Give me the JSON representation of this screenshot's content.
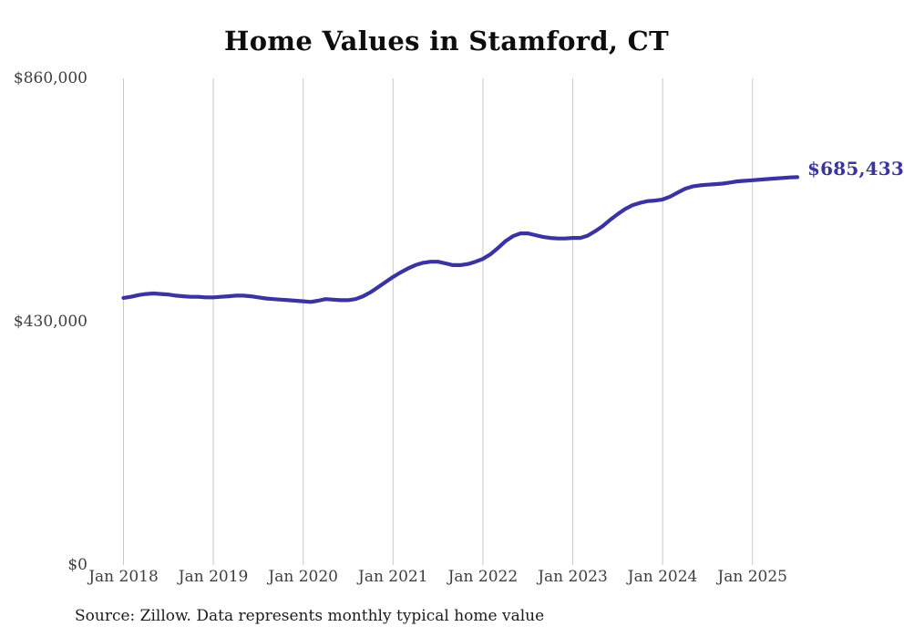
{
  "source_note": "Source: Zillow. Data represents monthly typical home value",
  "colors": {
    "line": "#3a34a0",
    "accent_label": "#3a34a0",
    "grid": "#c9c9c9",
    "axis_text": "#3e3e3e",
    "title_text": "#0d0d0d",
    "source_text": "#1c1c1c",
    "background": "#ffffff"
  },
  "chart_data": {
    "type": "line",
    "title": "Home Values in Stamford, CT",
    "series_name": "Monthly typical home value",
    "x_start": "Jan 2018",
    "x_end": "Jul 2025",
    "x_frequency": "monthly",
    "x_tick_labels": [
      "Jan 2018",
      "Jan 2019",
      "Jan 2020",
      "Jan 2021",
      "Jan 2022",
      "Jan 2023",
      "Jan 2024",
      "Jan 2025"
    ],
    "y_tick_labels": [
      "$0",
      "$430,000",
      "$860,000"
    ],
    "ylim": [
      0,
      860000
    ],
    "grid": "vertical-only",
    "legend": "none",
    "end_value": 685433,
    "end_value_label": "$685,433",
    "values": [
      472000,
      474000,
      477000,
      479000,
      480000,
      479000,
      478000,
      476000,
      475000,
      474000,
      474000,
      473000,
      473000,
      474000,
      475000,
      476000,
      476000,
      475000,
      473000,
      471000,
      470000,
      469000,
      468000,
      467000,
      466000,
      465000,
      467000,
      470000,
      469000,
      468000,
      468000,
      470000,
      475000,
      482000,
      491000,
      500000,
      509000,
      517000,
      524000,
      530000,
      534000,
      536000,
      536000,
      533000,
      530000,
      530000,
      532000,
      536000,
      541000,
      549000,
      560000,
      572000,
      581000,
      586000,
      586000,
      583000,
      580000,
      578000,
      577000,
      577000,
      578000,
      578000,
      582000,
      590000,
      599000,
      610000,
      620000,
      629000,
      636000,
      640000,
      643000,
      644000,
      646000,
      651000,
      658000,
      665000,
      669000,
      671000,
      672000,
      673000,
      674000,
      676000,
      678000,
      679000,
      680000,
      681000,
      682000,
      683000,
      684000,
      685000,
      685433
    ]
  }
}
